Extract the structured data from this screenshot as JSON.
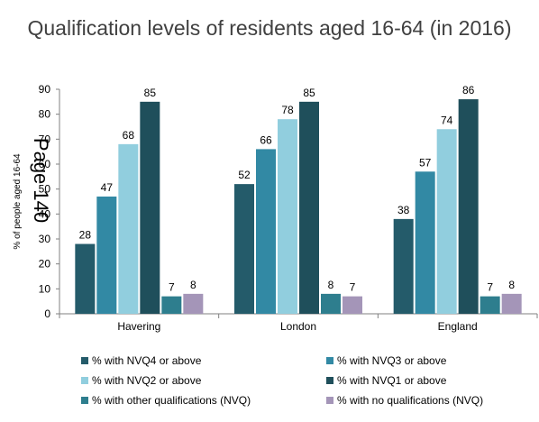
{
  "chart_data": {
    "type": "bar",
    "title": "Qualification levels of residents aged 16-64 (in 2016)",
    "ylabel": "% of people aged 16-64",
    "xlabel": "",
    "watermark": "Page 140",
    "categories": [
      "Havering",
      "London",
      "England"
    ],
    "ylim": [
      0,
      90
    ],
    "yticks": [
      0,
      10,
      20,
      30,
      40,
      50,
      60,
      70,
      80,
      90
    ],
    "grid": false,
    "legend_position": "bottom",
    "series": [
      {
        "name": "% with NVQ4 or above",
        "color": "#245B6A",
        "values": [
          28,
          52,
          38
        ]
      },
      {
        "name": "% with NVQ3 or above",
        "color": "#3289A4",
        "values": [
          47,
          66,
          57
        ]
      },
      {
        "name": "% with NVQ2 or above",
        "color": "#91CEDE",
        "values": [
          68,
          78,
          74
        ]
      },
      {
        "name": "% with NVQ1 or above",
        "color": "#1F4F5B",
        "values": [
          85,
          85,
          86
        ]
      },
      {
        "name": "% with other qualifications (NVQ)",
        "color": "#2E7E8E",
        "values": [
          7,
          8,
          7
        ]
      },
      {
        "name": "% with no qualifications (NVQ)",
        "color": "#A495B8",
        "values": [
          8,
          7,
          8
        ]
      }
    ]
  }
}
